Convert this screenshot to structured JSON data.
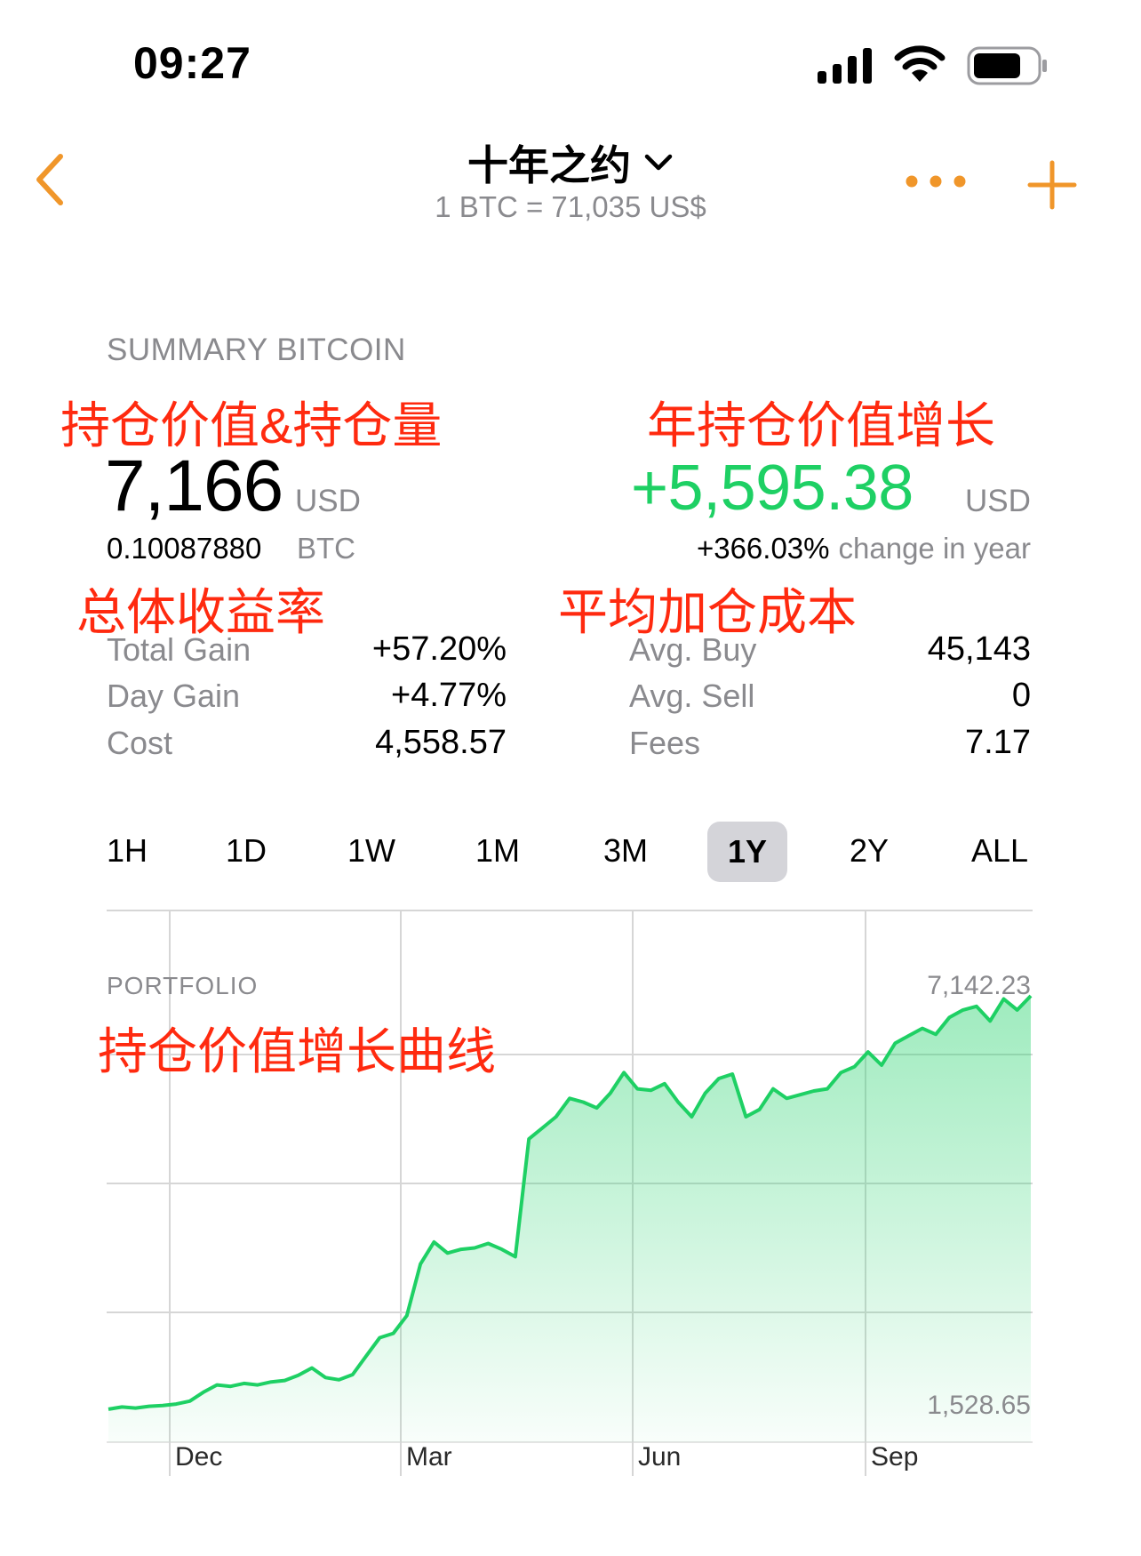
{
  "status_bar": {
    "time": "09:27"
  },
  "header": {
    "title": "十年之约",
    "subtitle": "1 BTC = 71,035 US$"
  },
  "summary": {
    "section_title": "SUMMARY BITCOIN",
    "value": "7,166",
    "value_unit": "USD",
    "btc_amount": "0.10087880",
    "btc_unit": "BTC",
    "year_gain": "+5,595.38",
    "year_gain_unit": "USD",
    "year_change_pct": "+366.03%",
    "year_change_label": "change in year",
    "stats_left": [
      {
        "label": "Total Gain",
        "value": "+57.20%"
      },
      {
        "label": "Day Gain",
        "value": "+4.77%"
      },
      {
        "label": "Cost",
        "value": "4,558.57"
      }
    ],
    "stats_right": [
      {
        "label": "Avg. Buy",
        "value": "45,143"
      },
      {
        "label": "Avg. Sell",
        "value": "0"
      },
      {
        "label": "Fees",
        "value": "7.17"
      }
    ]
  },
  "annotations": {
    "holding_value": "持仓价值&持仓量",
    "year_value_growth": "年持仓价值增长",
    "total_return": "总体收益率",
    "avg_cost": "平均加仓成本",
    "value_curve": "持仓价值增长曲线"
  },
  "ranges": {
    "options": [
      "1H",
      "1D",
      "1W",
      "1M",
      "3M",
      "1Y",
      "2Y",
      "ALL"
    ],
    "selected": "1Y"
  },
  "colors": {
    "accent": "#f0962a",
    "positive": "#1ed064",
    "annotation": "#ff2a0f",
    "secondary_text": "#8a8a8e"
  },
  "icons": {
    "back": "chevron-left-icon",
    "title_dropdown": "chevron-down-icon",
    "more": "more-horizontal-icon",
    "add": "plus-icon"
  },
  "chart_data": {
    "type": "area",
    "title": "PORTFOLIO",
    "max_label": "7,142.23",
    "min_label": "1,528.65",
    "x_ticks": [
      "Dec",
      "Mar",
      "Jun",
      "Sep"
    ],
    "series": [
      {
        "values": [
          1530,
          1560,
          1545,
          1570,
          1580,
          1600,
          1640,
          1760,
          1860,
          1840,
          1880,
          1860,
          1900,
          1920,
          1990,
          2090,
          1960,
          1930,
          2000,
          2250,
          2500,
          2560,
          2800,
          3500,
          3800,
          3650,
          3700,
          3720,
          3780,
          3700,
          3600,
          5200,
          5350,
          5500,
          5750,
          5700,
          5620,
          5820,
          6100,
          5880,
          5860,
          5950,
          5700,
          5500,
          5820,
          6020,
          6080,
          5500,
          5600,
          5880,
          5750,
          5800,
          5850,
          5880,
          6100,
          6180,
          6380,
          6200,
          6500,
          6600,
          6700,
          6620,
          6850,
          6950,
          7000,
          6800,
          7100,
          6950,
          7142
        ]
      }
    ],
    "grid": true
  }
}
